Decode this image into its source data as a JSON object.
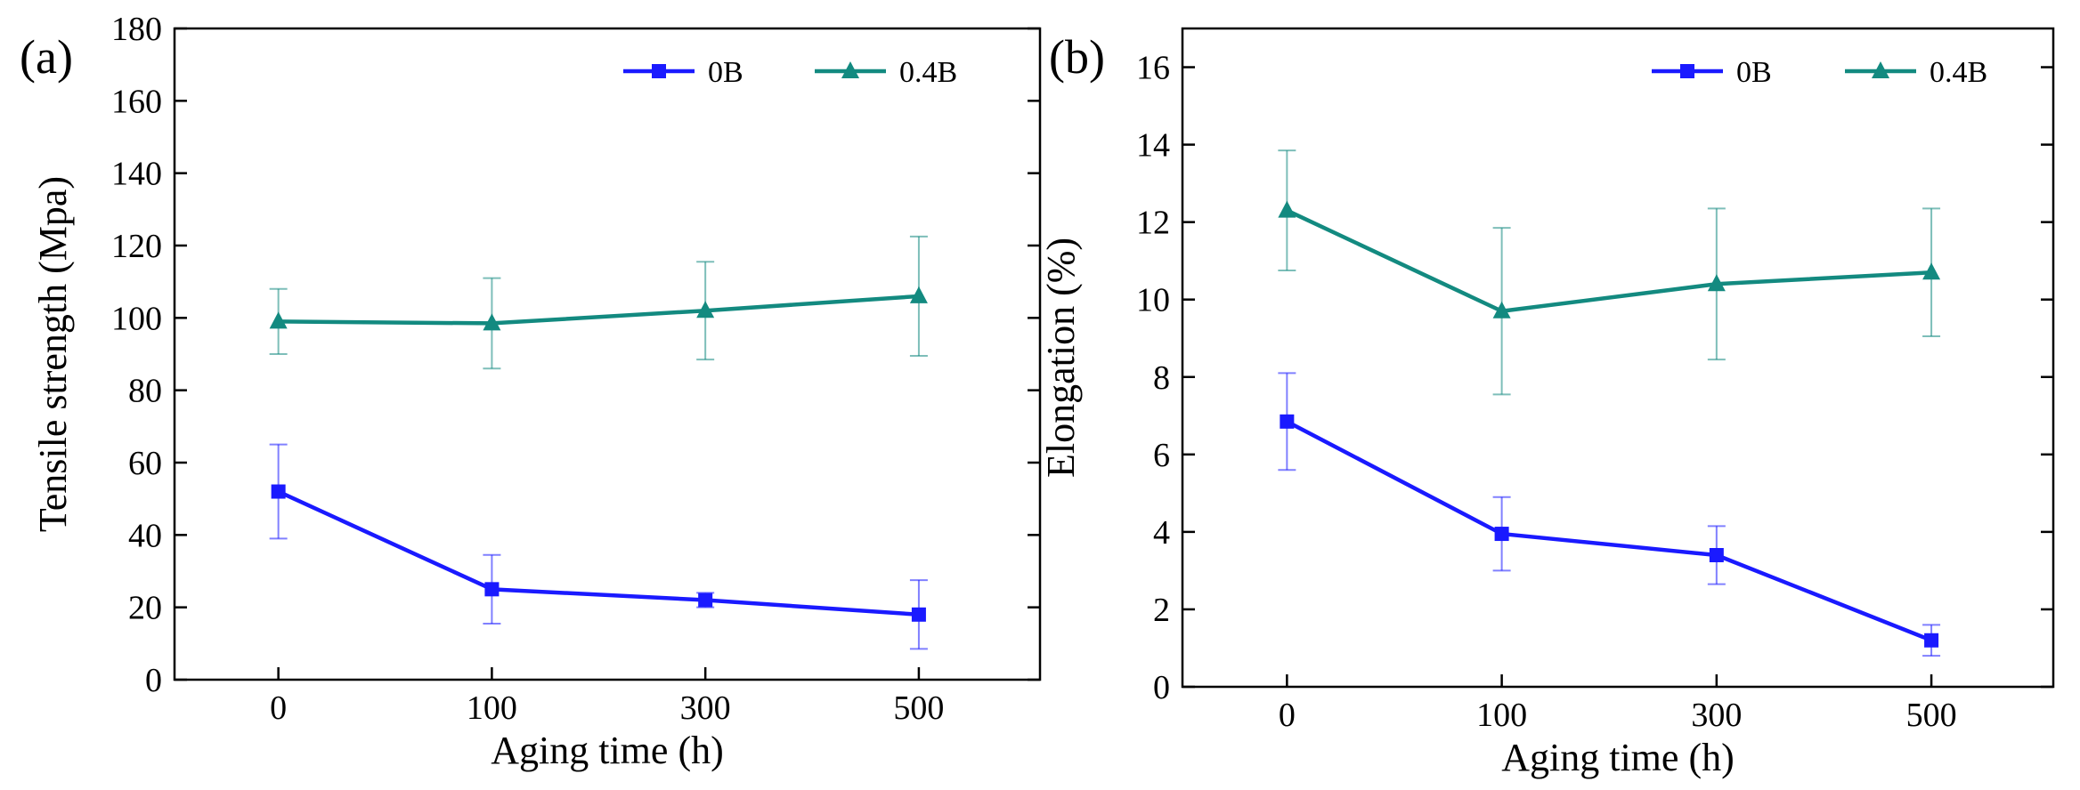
{
  "colors": {
    "series_0B": "#1a1aff",
    "series_04B": "#138a80",
    "axis": "#000000",
    "background": "#ffffff"
  },
  "chart_data": [
    {
      "panel_label": "(a)",
      "type": "line",
      "categories": [
        "0",
        "100",
        "300",
        "500"
      ],
      "xlabel": "Aging time (h)",
      "ylabel": "Tensile strength (Mpa)",
      "ylim": [
        0,
        180
      ],
      "yticks": [
        "0",
        "20",
        "40",
        "60",
        "80",
        "100",
        "120",
        "140",
        "160",
        "180"
      ],
      "legend_position": "top-right",
      "grid": false,
      "series": [
        {
          "name": "0B",
          "marker": "square",
          "values": [
            52,
            25,
            22,
            18
          ],
          "errors": [
            13,
            9.5,
            2,
            9.5
          ]
        },
        {
          "name": "0.4B",
          "marker": "triangle",
          "values": [
            99,
            98.5,
            102,
            106
          ],
          "errors": [
            9,
            12.5,
            13.5,
            16.5
          ]
        }
      ]
    },
    {
      "panel_label": "(b)",
      "type": "line",
      "categories": [
        "0",
        "100",
        "300",
        "500"
      ],
      "xlabel": "Aging time (h)",
      "ylabel": "Elongation (%)",
      "ylim": [
        0,
        17
      ],
      "yticks": [
        "0",
        "2",
        "4",
        "6",
        "8",
        "10",
        "12",
        "14",
        "16"
      ],
      "legend_position": "top-right",
      "grid": false,
      "series": [
        {
          "name": "0B",
          "marker": "square",
          "values": [
            6.85,
            3.95,
            3.4,
            1.2
          ],
          "errors": [
            1.25,
            0.95,
            0.75,
            0.4
          ]
        },
        {
          "name": "0.4B",
          "marker": "triangle",
          "values": [
            12.3,
            9.7,
            10.4,
            10.7
          ],
          "errors": [
            1.55,
            2.15,
            1.95,
            1.65
          ]
        }
      ]
    }
  ]
}
